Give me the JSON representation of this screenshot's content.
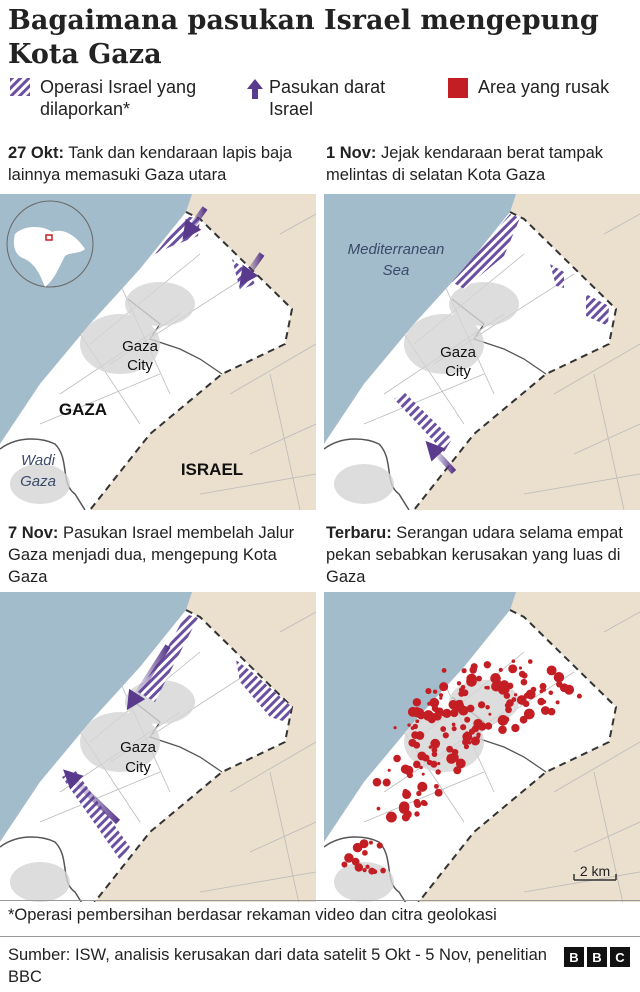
{
  "title": "Bagaimana pasukan Israel mengepung Kota Gaza",
  "legend": [
    {
      "icon": "hatch-icon",
      "label": "Operasi Israel yang dilaporkan*",
      "color": "#6b4fa0"
    },
    {
      "icon": "arrow-up-icon",
      "label": "Pasukan darat Israel",
      "color": "#5a3a8c"
    },
    {
      "icon": "red-square-icon",
      "label": "Area yang rusak",
      "color": "#c41e25"
    }
  ],
  "panels": [
    {
      "date": "27 Okt:",
      "caption": "Tank dan kendaraan lapis baja lainnya memasuki Gaza utara"
    },
    {
      "date": "1 Nov:",
      "caption": "Jejak kendaraan berat tampak melintas di selatan Kota Gaza"
    },
    {
      "date": "7 Nov:",
      "caption": "Pasukan Israel membelah Jalur Gaza menjadi dua, mengepung Kota Gaza"
    },
    {
      "date": "Terbaru:",
      "caption": "Serangan udara selama empat pekan sebabkan kerusakan yang luas di Gaza"
    }
  ],
  "map_labels": {
    "gaza_city_1": "Gaza",
    "gaza_city_2": "City",
    "gaza": "GAZA",
    "israel": "ISRAEL",
    "wadi_1": "Wadi",
    "wadi_2": "Gaza",
    "sea_1": "Mediterranean",
    "sea_2": "Sea",
    "scale": "2 km"
  },
  "colors": {
    "sea": "#a3bccb",
    "land": "#ebdfcd",
    "strip": "#ffffff",
    "operation": "#6b4fa0",
    "damage": "#c41e25"
  },
  "footnote": "*Operasi pembersihan berdasar rekaman video dan citra geolokasi",
  "source": "Sumber: ISW, analisis kerusakan dari data satelit 5 Okt - 5 Nov, penelitian BBC",
  "logo": [
    "B",
    "B",
    "C"
  ]
}
